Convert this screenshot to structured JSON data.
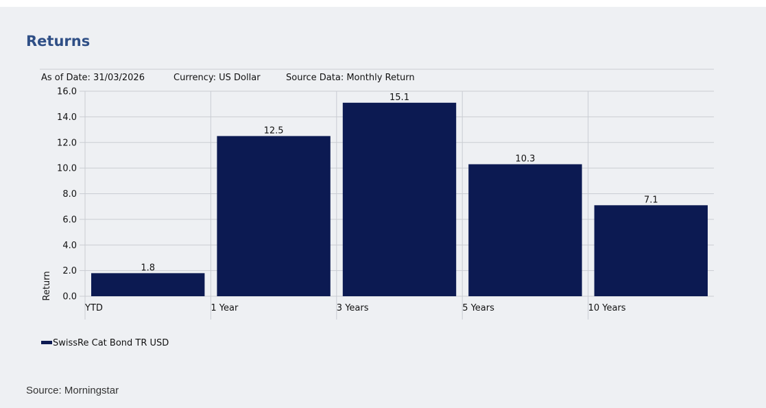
{
  "page": {
    "title": "Returns",
    "source": "Source: Morningstar"
  },
  "meta": {
    "as_of": "As of Date: 31/03/2026",
    "currency": "Currency: US Dollar",
    "source_data": "Source Data: Monthly Return"
  },
  "colors": {
    "bar": "#0c1a52",
    "background": "#eef0f3",
    "title": "#2f4f86",
    "grid": "#c9ccd2"
  },
  "chart_data": {
    "type": "bar",
    "categories": [
      "YTD",
      "1 Year",
      "3 Years",
      "5 Years",
      "10 Years"
    ],
    "series": [
      {
        "name": "SwissRe Cat Bond TR USD",
        "values": [
          1.8,
          12.5,
          15.1,
          10.3,
          7.1
        ]
      }
    ],
    "data_labels": [
      "1.8",
      "12.5",
      "15.1",
      "10.3",
      "7.1"
    ],
    "ylabel": "Return",
    "xlabel": "",
    "ylim": [
      0,
      16
    ],
    "yticks": [
      0,
      2,
      4,
      6,
      8,
      10,
      12,
      14,
      16
    ],
    "ytick_labels": [
      "0.0",
      "2.0",
      "4.0",
      "6.0",
      "8.0",
      "10.0",
      "12.0",
      "14.0",
      "16.0"
    ],
    "grid": true,
    "legend": "bottom-left"
  }
}
